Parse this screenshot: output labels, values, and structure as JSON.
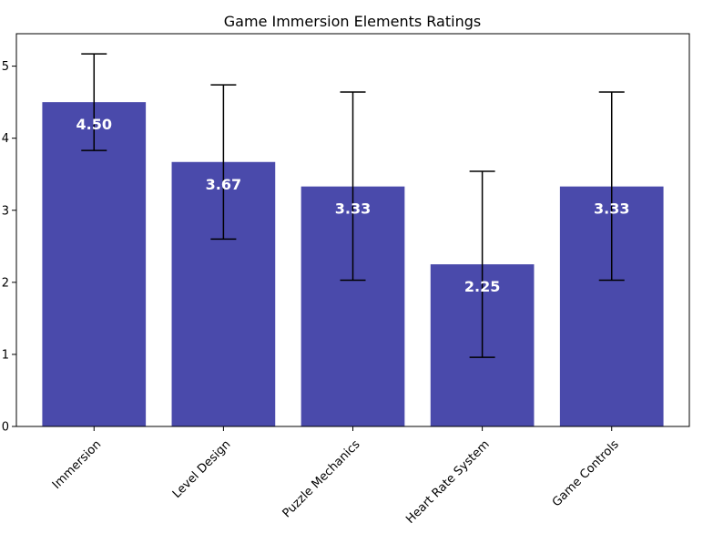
{
  "chart_data": {
    "type": "bar",
    "title": "Game Immersion Elements Ratings",
    "xlabel": "",
    "ylabel": "",
    "categories": [
      "Immersion",
      "Level Design",
      "Puzzle Mechanics",
      "Heart Rate System",
      "Game Controls"
    ],
    "values": [
      4.5,
      3.67,
      3.33,
      2.25,
      3.33
    ],
    "value_labels": [
      "4.50",
      "3.67",
      "3.33",
      "2.25",
      "3.33"
    ],
    "error_low": [
      3.83,
      2.6,
      2.03,
      0.96,
      2.03
    ],
    "error_high": [
      5.17,
      4.74,
      4.64,
      3.54,
      4.64
    ],
    "ylim": [
      0,
      5.45
    ],
    "yticks": [
      0,
      1,
      2,
      3,
      4,
      5
    ],
    "ytick_labels": [
      "0",
      "1",
      "2",
      "3",
      "4",
      "5"
    ],
    "bar_color": "#4a4aab",
    "grid": false,
    "legend": "none"
  }
}
